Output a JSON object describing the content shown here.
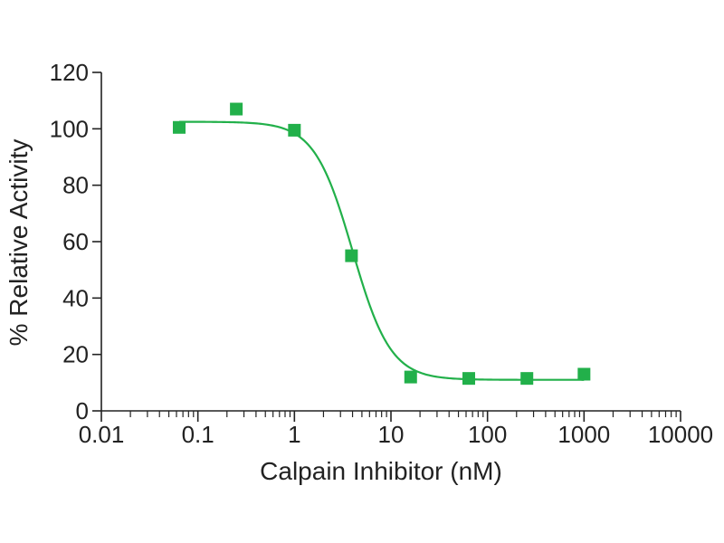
{
  "chart_data": {
    "type": "scatter",
    "title": "",
    "xlabel": "Calpain Inhibitor (nM)",
    "ylabel": "% Relative Activity",
    "x_scale": "log",
    "xlim": [
      0.01,
      10000
    ],
    "ylim": [
      0,
      120
    ],
    "x_tick_labels": [
      "0.01",
      "0.1",
      "1",
      "10",
      "100",
      "1000",
      "10000"
    ],
    "y_tick_labels": [
      "0",
      "20",
      "40",
      "60",
      "80",
      "100",
      "120"
    ],
    "grid": false,
    "legend": "none",
    "series": [
      {
        "points": [
          {
            "x": 0.064,
            "y": 100.5
          },
          {
            "x": 0.25,
            "y": 107
          },
          {
            "x": 1.0,
            "y": 99.5
          },
          {
            "x": 3.9,
            "y": 55
          },
          {
            "x": 16,
            "y": 12
          },
          {
            "x": 64,
            "y": 11.5
          },
          {
            "x": 256,
            "y": 11.5
          },
          {
            "x": 1000,
            "y": 13
          }
        ],
        "color": "#22b04a"
      }
    ],
    "fit": {
      "model": "four-parameter logistic",
      "top": 102.5,
      "bottom": 11,
      "ic50": 4.0,
      "hill_slope": 2.2,
      "x_range": [
        0.064,
        1000
      ],
      "color": "#22b04a"
    }
  }
}
